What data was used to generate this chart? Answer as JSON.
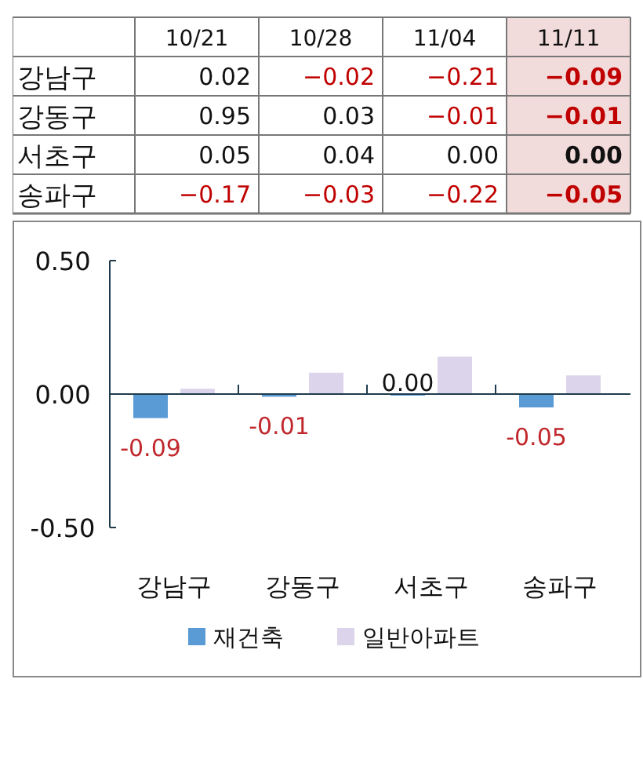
{
  "chart_data": [
    {
      "type": "heatmap",
      "categories": [
        "10/21",
        "10/28",
        "11/04",
        "11/11"
      ],
      "y_categories": [
        "강남구",
        "강동구",
        "서초구",
        "송파구"
      ],
      "cells": [
        [
          0.02,
          -0.02,
          -0.21,
          -0.09
        ],
        [
          0.95,
          0.03,
          -0.01,
          -0.01
        ],
        [
          0.05,
          0.04,
          0.0,
          0.0
        ],
        [
          -0.17,
          -0.03,
          -0.22,
          -0.05
        ]
      ],
      "cell_labels": [
        [
          "0.02",
          "−0.02",
          "−0.21",
          "−0.09"
        ],
        [
          "0.95",
          "0.03",
          "−0.01",
          "−0.01"
        ],
        [
          "0.05",
          "0.04",
          "0.00",
          "0.00"
        ],
        [
          "−0.17",
          "−0.03",
          "−0.22",
          "−0.05"
        ]
      ],
      "bands": [
        {
          "axis": "x",
          "from": "11/11",
          "to": "11/11",
          "color": "#f2dcdb"
        }
      ]
    },
    {
      "type": "bar",
      "categories": [
        "강남구",
        "강동구",
        "서초구",
        "송파구"
      ],
      "series": [
        {
          "name": "재건축",
          "color": "#5b9bd5",
          "values": [
            -0.09,
            -0.01,
            0.0,
            -0.05
          ],
          "value_labels": [
            "-0.09",
            "-0.01",
            "0.00",
            "-0.05"
          ]
        },
        {
          "name": "일반아파트",
          "color": "#dcd4ea",
          "values": [
            0.02,
            0.08,
            0.14,
            0.07
          ]
        }
      ],
      "ylim": [
        -0.5,
        0.5
      ],
      "yticks": [
        {
          "value": -0.5,
          "label": "-0.50"
        },
        {
          "value": 0,
          "label": "0.00"
        },
        {
          "value": 0.5,
          "label": "0.50"
        }
      ],
      "grid": false,
      "legend": "bottom"
    }
  ]
}
